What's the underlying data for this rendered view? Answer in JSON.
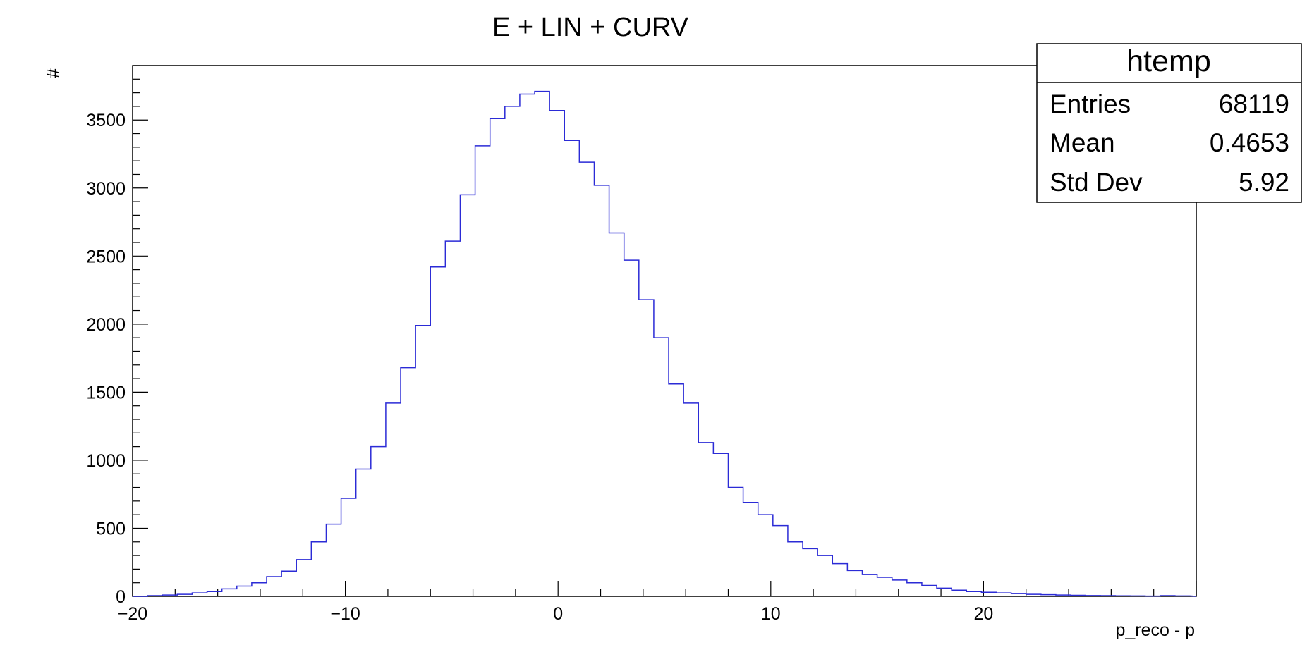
{
  "chart_data": {
    "type": "bar",
    "style": "step-histogram",
    "title": "E + LIN + CURV",
    "xlabel": "p_reco - p",
    "ylabel": "#",
    "xlim": [
      -20,
      30
    ],
    "ylim": [
      0,
      3900
    ],
    "bin_width": 0.7,
    "x_ticks": [
      -20,
      -10,
      0,
      10,
      20
    ],
    "x_tick_labels": [
      "−20",
      "−10",
      "0",
      "10",
      "20"
    ],
    "y_ticks": [
      0,
      500,
      1000,
      1500,
      2000,
      2500,
      3000,
      3500
    ],
    "y_tick_labels": [
      "0",
      "500",
      "1000",
      "1500",
      "2000",
      "2500",
      "3000",
      "3500"
    ],
    "line_color": "#2b2bd6",
    "values": [
      0,
      5,
      10,
      15,
      25,
      35,
      55,
      75,
      100,
      145,
      185,
      270,
      400,
      530,
      720,
      935,
      1100,
      1420,
      1680,
      1990,
      2420,
      2610,
      2950,
      3310,
      3510,
      3600,
      3690,
      3710,
      3570,
      3350,
      3190,
      3020,
      2670,
      2470,
      2180,
      1900,
      1560,
      1420,
      1130,
      1050,
      800,
      690,
      600,
      520,
      400,
      350,
      300,
      240,
      190,
      160,
      140,
      120,
      100,
      80,
      60,
      45,
      35,
      30,
      25,
      20,
      15,
      12,
      10,
      8,
      6,
      5,
      4,
      3,
      2,
      5,
      3
    ]
  },
  "stats_box": {
    "title": "htemp",
    "rows": [
      {
        "label": "Entries",
        "value": "68119"
      },
      {
        "label": "Mean",
        "value": "0.4653"
      },
      {
        "label": "Std Dev",
        "value": "5.92"
      }
    ]
  }
}
